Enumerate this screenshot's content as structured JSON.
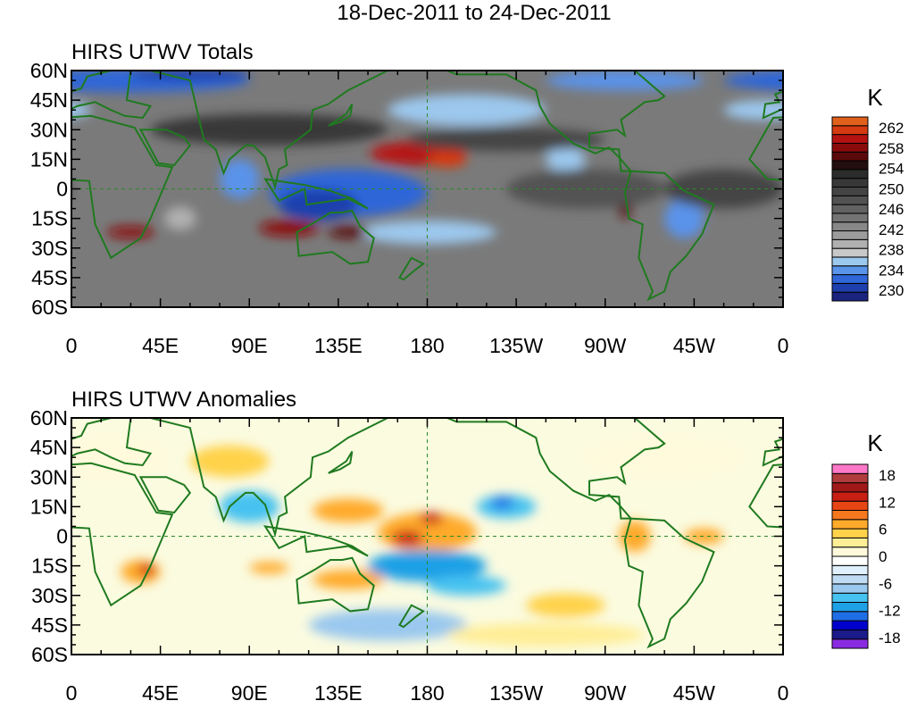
{
  "figure": {
    "title": "18-Dec-2011 to 24-Dec-2011"
  },
  "panels": [
    {
      "id": "totals",
      "title": "HIRS UTWV Totals",
      "unit": "K",
      "lat_labels": [
        "60N",
        "45N",
        "30N",
        "15N",
        "0",
        "15S",
        "30S",
        "45S",
        "60S"
      ],
      "lon_labels": [
        "0",
        "45E",
        "90E",
        "135E",
        "180",
        "135W",
        "90W",
        "45W",
        "0"
      ],
      "colorbar": {
        "colors": [
          "#1a237e",
          "#1e3fae",
          "#2f66d8",
          "#5a93ea",
          "#9cc8ee",
          "#c8c8c8",
          "#b0b0b0",
          "#9c9c9c",
          "#888888",
          "#747474",
          "#626262",
          "#525252",
          "#444444",
          "#383838",
          "#2c2c2c",
          "#220e0e",
          "#5a0a0a",
          "#8a0b0b",
          "#b51212",
          "#d63a10",
          "#e0601c"
        ],
        "labels": [
          "262",
          "258",
          "254",
          "250",
          "246",
          "242",
          "238",
          "234",
          "230"
        ]
      },
      "blobs": [
        {
          "lon": 140,
          "lat": -2,
          "rx": 40,
          "ry": 12,
          "color": "#2f66d8"
        },
        {
          "lon": 125,
          "lat": -8,
          "rx": 20,
          "ry": 8,
          "color": "#1e3fae"
        },
        {
          "lon": 85,
          "lat": 5,
          "rx": 10,
          "ry": 10,
          "color": "#5a93ea"
        },
        {
          "lon": 180,
          "lat": -22,
          "rx": 35,
          "ry": 6,
          "color": "#9cc8ee"
        },
        {
          "lon": 55,
          "lat": -15,
          "rx": 8,
          "ry": 6,
          "color": "#b0b0b0"
        },
        {
          "lon": 175,
          "lat": 18,
          "rx": 24,
          "ry": 6,
          "color": "#b51212"
        },
        {
          "lon": 190,
          "lat": 15,
          "rx": 10,
          "ry": 4,
          "color": "#d63a10"
        },
        {
          "lon": 110,
          "lat": -20,
          "rx": 15,
          "ry": 4,
          "color": "#8a0b0b"
        },
        {
          "lon": 140,
          "lat": -22,
          "rx": 10,
          "ry": 3,
          "color": "#5a0a0a"
        },
        {
          "lon": 30,
          "lat": -22,
          "rx": 12,
          "ry": 3,
          "color": "#8a0b0b"
        },
        {
          "lon": 280,
          "lat": -5,
          "rx": 4,
          "ry": 10,
          "color": "#5a0a0a"
        },
        {
          "lon": 310,
          "lat": -15,
          "rx": 10,
          "ry": 10,
          "color": "#5a93ea"
        },
        {
          "lon": 250,
          "lat": 15,
          "rx": 10,
          "ry": 6,
          "color": "#9cc8ee"
        },
        {
          "lon": 30,
          "lat": 55,
          "rx": 60,
          "ry": 6,
          "color": "#2f66d8"
        },
        {
          "lon": 60,
          "lat": 58,
          "rx": 30,
          "ry": 3,
          "color": "#1e3fae"
        },
        {
          "lon": 280,
          "lat": 55,
          "rx": 40,
          "ry": 5,
          "color": "#5a93ea"
        },
        {
          "lon": 200,
          "lat": 40,
          "rx": 40,
          "ry": 8,
          "color": "#9cc8ee"
        },
        {
          "lon": 350,
          "lat": 40,
          "rx": 20,
          "ry": 5,
          "color": "#9cc8ee"
        },
        {
          "lon": 100,
          "lat": 30,
          "rx": 60,
          "ry": 8,
          "color": "#383838"
        },
        {
          "lon": 220,
          "lat": 25,
          "rx": 50,
          "ry": 6,
          "color": "#444444"
        },
        {
          "lon": 260,
          "lat": 0,
          "rx": 40,
          "ry": 10,
          "color": "#525252"
        },
        {
          "lon": 330,
          "lat": 0,
          "rx": 30,
          "ry": 10,
          "color": "#444444"
        }
      ]
    },
    {
      "id": "anomalies",
      "title": "HIRS UTWV Anomalies",
      "unit": "K",
      "lat_labels": [
        "60N",
        "45N",
        "30N",
        "15N",
        "0",
        "15S",
        "30S",
        "45S",
        "60S"
      ],
      "lon_labels": [
        "0",
        "45E",
        "90E",
        "135E",
        "180",
        "135W",
        "90W",
        "45W",
        "0"
      ],
      "colorbar": {
        "colors": [
          "#8a2be2",
          "#1a1a8a",
          "#0000cd",
          "#1e6ee6",
          "#1ea0e6",
          "#46c2f0",
          "#9ac8ee",
          "#c0dcf4",
          "#e0f0ff",
          "#ffffff",
          "#fffadc",
          "#ffee96",
          "#ffd24a",
          "#ffaa2a",
          "#f5781e",
          "#e64614",
          "#c81e14",
          "#a01818",
          "#b03c3c",
          "#ff78c8"
        ],
        "labels": [
          "18",
          "12",
          "6",
          "0",
          "-6",
          "-12",
          "-18"
        ]
      },
      "blobs": [
        {
          "lon": 180,
          "lat": 2,
          "rx": 25,
          "ry": 10,
          "color": "#ffaa2a"
        },
        {
          "lon": 170,
          "lat": -1,
          "rx": 8,
          "ry": 4,
          "color": "#c81e14"
        },
        {
          "lon": 182,
          "lat": 9,
          "rx": 6,
          "ry": 3,
          "color": "#c81e14"
        },
        {
          "lon": 140,
          "lat": 13,
          "rx": 18,
          "ry": 6,
          "color": "#ffaa2a"
        },
        {
          "lon": 140,
          "lat": -22,
          "rx": 18,
          "ry": 5,
          "color": "#ffaa2a"
        },
        {
          "lon": 180,
          "lat": -15,
          "rx": 30,
          "ry": 8,
          "color": "#1ea0e6"
        },
        {
          "lon": 200,
          "lat": -25,
          "rx": 20,
          "ry": 5,
          "color": "#46c2f0"
        },
        {
          "lon": 220,
          "lat": 15,
          "rx": 15,
          "ry": 6,
          "color": "#46c2f0"
        },
        {
          "lon": 218,
          "lat": 17,
          "rx": 6,
          "ry": 3,
          "color": "#1e6ee6"
        },
        {
          "lon": 90,
          "lat": 15,
          "rx": 15,
          "ry": 8,
          "color": "#46c2f0"
        },
        {
          "lon": 35,
          "lat": -18,
          "rx": 10,
          "ry": 6,
          "color": "#ffaa2a"
        },
        {
          "lon": 38,
          "lat": -17,
          "rx": 4,
          "ry": 3,
          "color": "#c81e14"
        },
        {
          "lon": 100,
          "lat": -16,
          "rx": 10,
          "ry": 3,
          "color": "#ffaa2a"
        },
        {
          "lon": 285,
          "lat": 0,
          "rx": 8,
          "ry": 8,
          "color": "#ffaa2a"
        },
        {
          "lon": 320,
          "lat": 0,
          "rx": 10,
          "ry": 4,
          "color": "#ffaa2a"
        },
        {
          "lon": 80,
          "lat": 38,
          "rx": 20,
          "ry": 8,
          "color": "#ffd24a"
        },
        {
          "lon": 250,
          "lat": -35,
          "rx": 20,
          "ry": 6,
          "color": "#ffd24a"
        },
        {
          "lon": 160,
          "lat": -45,
          "rx": 40,
          "ry": 8,
          "color": "#9ac8ee"
        },
        {
          "lon": 20,
          "lat": 40,
          "rx": 30,
          "ry": 10,
          "color": "#fffadc"
        },
        {
          "lon": 300,
          "lat": 40,
          "rx": 40,
          "ry": 10,
          "color": "#fffadc"
        },
        {
          "lon": 240,
          "lat": -50,
          "rx": 50,
          "ry": 6,
          "color": "#ffee96"
        }
      ]
    }
  ]
}
